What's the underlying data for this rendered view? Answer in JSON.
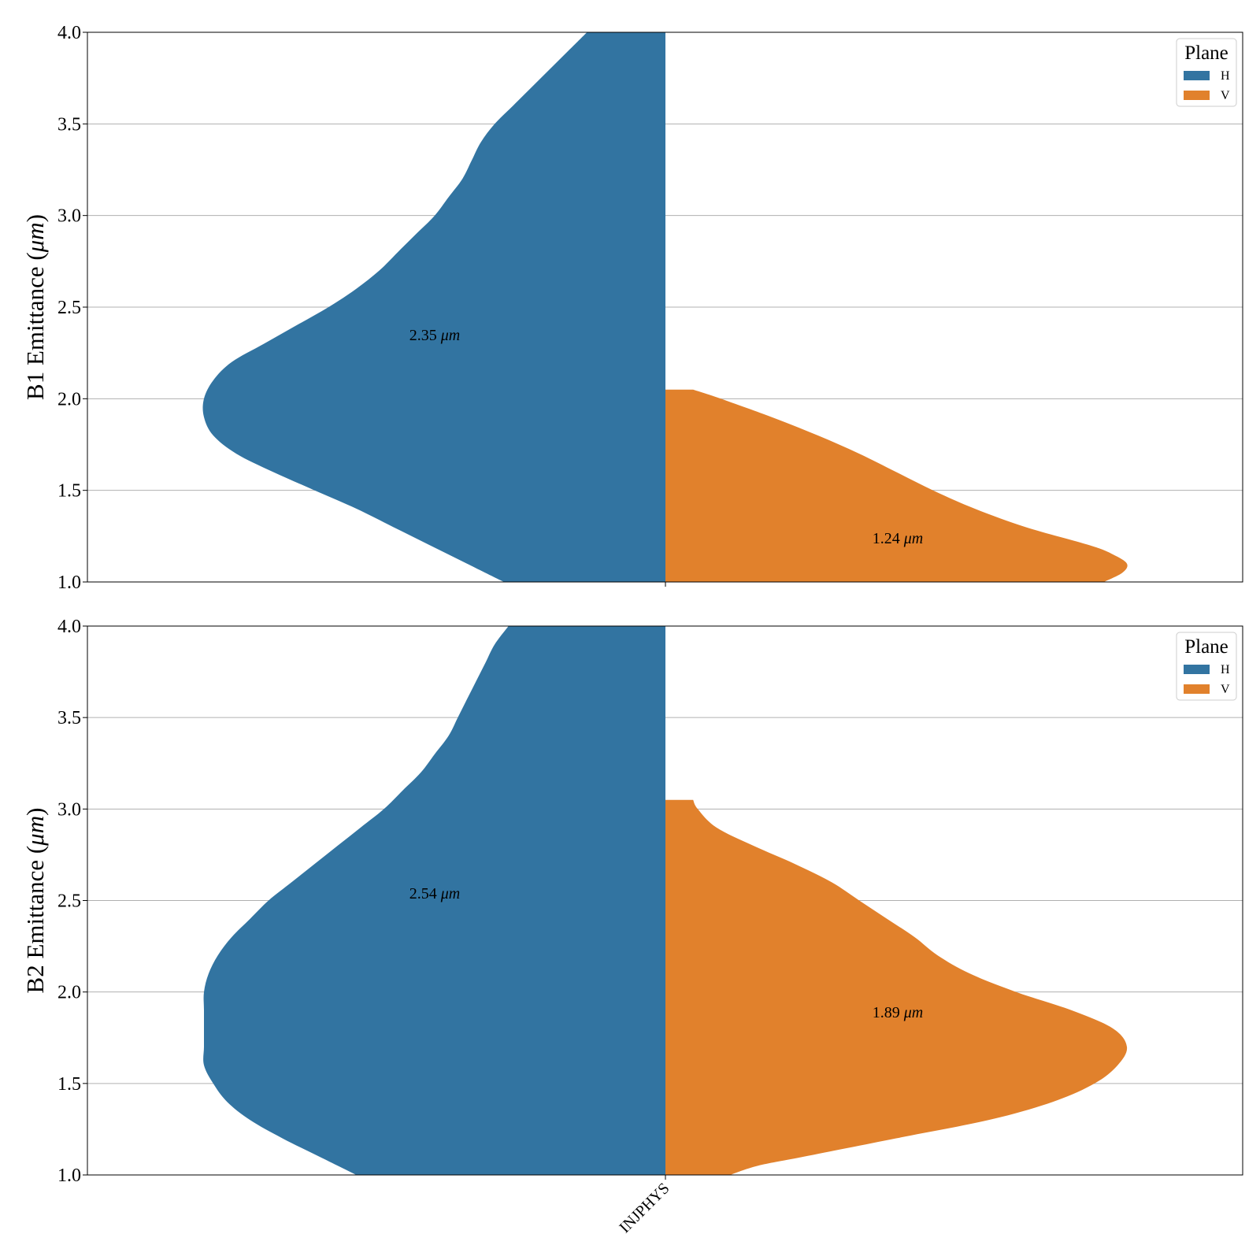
{
  "colors": {
    "H": "#3274a1",
    "V": "#e1812c",
    "grid": "#b0b0b0",
    "axes": "#000000"
  },
  "chart_data": [
    {
      "type": "violin",
      "ylabel_prefix": "B1 Emittance (",
      "ylabel_unit": "μm",
      "ylabel_suffix": ")",
      "ylim": [
        1.0,
        4.0
      ],
      "yticks": [
        "1.0",
        "1.5",
        "2.0",
        "2.5",
        "3.0",
        "3.5",
        "4.0"
      ],
      "grid": true,
      "legend": {
        "title": "Plane",
        "position": "top-right",
        "entries": [
          "H",
          "V"
        ]
      },
      "categories": [],
      "series": [
        {
          "name": "H",
          "side": "left",
          "color_key": "H",
          "median_label": "2.35",
          "median_value": 2.35,
          "unit": "μm",
          "profile": [
            [
              1.0,
              0.35
            ],
            [
              1.1,
              0.43
            ],
            [
              1.2,
              0.51
            ],
            [
              1.3,
              0.59
            ],
            [
              1.4,
              0.67
            ],
            [
              1.5,
              0.76
            ],
            [
              1.6,
              0.85
            ],
            [
              1.7,
              0.93
            ],
            [
              1.8,
              0.98
            ],
            [
              1.9,
              1.0
            ],
            [
              2.0,
              1.0
            ],
            [
              2.1,
              0.98
            ],
            [
              2.2,
              0.94
            ],
            [
              2.3,
              0.87
            ],
            [
              2.4,
              0.8
            ],
            [
              2.5,
              0.73
            ],
            [
              2.6,
              0.67
            ],
            [
              2.7,
              0.62
            ],
            [
              2.8,
              0.58
            ],
            [
              2.9,
              0.54
            ],
            [
              3.0,
              0.5
            ],
            [
              3.1,
              0.47
            ],
            [
              3.2,
              0.44
            ],
            [
              3.3,
              0.42
            ],
            [
              3.4,
              0.4
            ],
            [
              3.5,
              0.37
            ],
            [
              3.6,
              0.33
            ],
            [
              3.7,
              0.29
            ],
            [
              3.8,
              0.25
            ],
            [
              3.9,
              0.21
            ],
            [
              4.0,
              0.17
            ]
          ]
        },
        {
          "name": "V",
          "side": "right",
          "color_key": "V",
          "median_label": "1.24",
          "median_value": 1.24,
          "unit": "μm",
          "profile": [
            [
              1.0,
              0.95
            ],
            [
              1.05,
              0.99
            ],
            [
              1.1,
              1.0
            ],
            [
              1.15,
              0.97
            ],
            [
              1.2,
              0.92
            ],
            [
              1.3,
              0.78
            ],
            [
              1.4,
              0.67
            ],
            [
              1.5,
              0.58
            ],
            [
              1.6,
              0.5
            ],
            [
              1.7,
              0.42
            ],
            [
              1.8,
              0.33
            ],
            [
              1.9,
              0.23
            ],
            [
              2.0,
              0.12
            ],
            [
              2.05,
              0.06
            ]
          ]
        }
      ]
    },
    {
      "type": "violin",
      "ylabel_prefix": "B2 Emittance (",
      "ylabel_unit": "μm",
      "ylabel_suffix": ")",
      "ylim": [
        1.0,
        4.0
      ],
      "yticks": [
        "1.0",
        "1.5",
        "2.0",
        "2.5",
        "3.0",
        "3.5",
        "4.0"
      ],
      "grid": true,
      "legend": {
        "title": "Plane",
        "position": "top-right",
        "entries": [
          "H",
          "V"
        ]
      },
      "categories": [
        "INJPHYS"
      ],
      "series": [
        {
          "name": "H",
          "side": "left",
          "color_key": "H",
          "median_label": "2.54",
          "median_value": 2.54,
          "unit": "μm",
          "profile": [
            [
              1.0,
              0.67
            ],
            [
              1.1,
              0.75
            ],
            [
              1.2,
              0.83
            ],
            [
              1.3,
              0.9
            ],
            [
              1.4,
              0.95
            ],
            [
              1.5,
              0.98
            ],
            [
              1.6,
              1.0
            ],
            [
              1.7,
              1.0
            ],
            [
              1.8,
              1.0
            ],
            [
              1.9,
              1.0
            ],
            [
              2.0,
              1.0
            ],
            [
              2.1,
              0.99
            ],
            [
              2.2,
              0.97
            ],
            [
              2.3,
              0.94
            ],
            [
              2.4,
              0.9
            ],
            [
              2.5,
              0.86
            ],
            [
              2.6,
              0.81
            ],
            [
              2.7,
              0.76
            ],
            [
              2.8,
              0.71
            ],
            [
              2.9,
              0.66
            ],
            [
              3.0,
              0.61
            ],
            [
              3.1,
              0.57
            ],
            [
              3.2,
              0.53
            ],
            [
              3.3,
              0.5
            ],
            [
              3.4,
              0.47
            ],
            [
              3.5,
              0.45
            ],
            [
              3.6,
              0.43
            ],
            [
              3.7,
              0.41
            ],
            [
              3.8,
              0.39
            ],
            [
              3.9,
              0.37
            ],
            [
              4.0,
              0.34
            ]
          ]
        },
        {
          "name": "V",
          "side": "right",
          "color_key": "V",
          "median_label": "1.89",
          "median_value": 1.89,
          "unit": "μm",
          "profile": [
            [
              1.0,
              0.14
            ],
            [
              1.05,
              0.2
            ],
            [
              1.1,
              0.3
            ],
            [
              1.2,
              0.5
            ],
            [
              1.3,
              0.7
            ],
            [
              1.4,
              0.84
            ],
            [
              1.5,
              0.93
            ],
            [
              1.6,
              0.98
            ],
            [
              1.7,
              1.0
            ],
            [
              1.8,
              0.97
            ],
            [
              1.9,
              0.88
            ],
            [
              2.0,
              0.76
            ],
            [
              2.1,
              0.66
            ],
            [
              2.2,
              0.59
            ],
            [
              2.3,
              0.54
            ],
            [
              2.4,
              0.48
            ],
            [
              2.5,
              0.42
            ],
            [
              2.6,
              0.36
            ],
            [
              2.7,
              0.28
            ],
            [
              2.8,
              0.19
            ],
            [
              2.9,
              0.11
            ],
            [
              3.0,
              0.07
            ],
            [
              3.05,
              0.06
            ]
          ]
        }
      ]
    }
  ]
}
